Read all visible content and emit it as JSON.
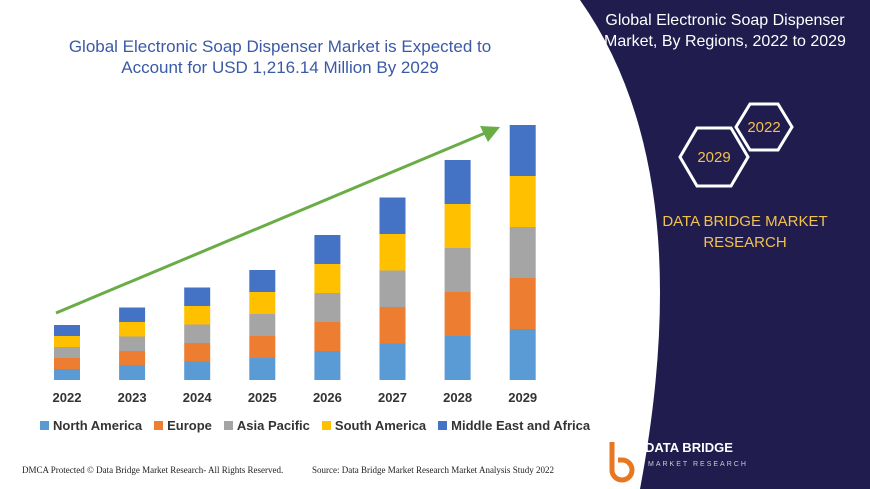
{
  "chart_data": {
    "type": "stacked-bar",
    "title": "Global Electronic Soap Dispenser Market is Expected to Account for USD 1,216.14 Million By 2029",
    "categories": [
      "2022",
      "2023",
      "2024",
      "2025",
      "2026",
      "2027",
      "2028",
      "2029"
    ],
    "series": [
      {
        "name": "North America",
        "color": "#5b9bd5",
        "values": [
          11,
          14.5,
          18.5,
          22,
          29,
          36.5,
          44,
          51
        ]
      },
      {
        "name": "Europe",
        "color": "#ed7d31",
        "values": [
          11,
          14.5,
          18.5,
          22,
          29,
          36.5,
          44,
          51
        ]
      },
      {
        "name": "Asia Pacific",
        "color": "#a5a5a5",
        "values": [
          11,
          14.5,
          18.5,
          22,
          29,
          36.5,
          44,
          51
        ]
      },
      {
        "name": "South America",
        "color": "#ffc000",
        "values": [
          11,
          14.5,
          18.5,
          22,
          29,
          36.5,
          44,
          51
        ]
      },
      {
        "name": "Middle East and Africa",
        "color": "#4472c4",
        "values": [
          11,
          14.5,
          18.5,
          22,
          29,
          36.5,
          44,
          51
        ]
      }
    ]
  },
  "panel": {
    "title": "Global Electronic Soap Dispenser Market, By Regions, 2022 to 2029",
    "hex_labels": [
      "2022",
      "2029"
    ],
    "brand": "DATA BRIDGE MARKET RESEARCH"
  },
  "logo": {
    "name": "DATA BRIDGE",
    "tagline": "MARKET RESEARCH"
  },
  "footer": {
    "left": "DMCA Protected © Data Bridge Market Research- All Rights Reserved.",
    "right": "Source: Data Bridge Market Research Market Analysis Study 2022"
  }
}
